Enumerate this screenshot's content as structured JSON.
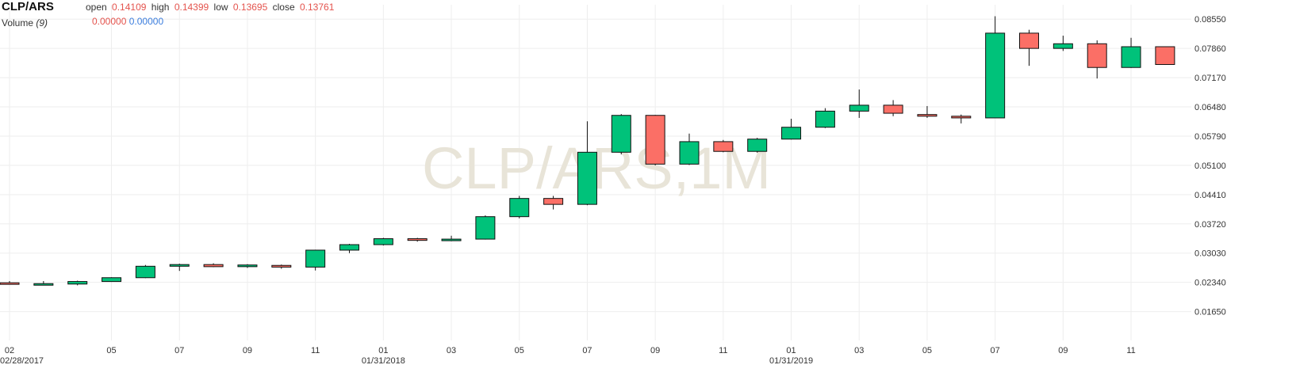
{
  "header": {
    "symbol": "CLP/ARS",
    "open_label": "open",
    "open_value": "0.14109",
    "high_label": "high",
    "high_value": "0.14399",
    "low_label": "low",
    "low_value": "0.13695",
    "close_label": "close",
    "close_value": "0.13761",
    "volume_label": "Volume",
    "volume_period": "(9)",
    "volume_value_1": "0.00000",
    "volume_value_2": "0.00000"
  },
  "watermark": "CLP/ARS,1M",
  "colors": {
    "up": "#00c27a",
    "down": "#fb6f66",
    "wick": "#111111",
    "grid": "#eeeeee",
    "header_value": "#e4534d",
    "volume_blue": "#3b7ddd",
    "watermark": "#e8e4d8"
  },
  "chart_data": {
    "type": "candlestick",
    "title": "CLP/ARS",
    "ylim": [
      0.0097,
      0.0889
    ],
    "y_ticks": [
      "0.08550",
      "0.07860",
      "0.07170",
      "0.06480",
      "0.05790",
      "0.05100",
      "0.04410",
      "0.03720",
      "0.03030",
      "0.02340",
      "0.01650"
    ],
    "x_ticks": [
      {
        "month_index": 0,
        "label": "02",
        "date_label": "02/28/2017"
      },
      {
        "month_index": 3,
        "label": "05",
        "date_label": ""
      },
      {
        "month_index": 5,
        "label": "07",
        "date_label": ""
      },
      {
        "month_index": 7,
        "label": "09",
        "date_label": ""
      },
      {
        "month_index": 9,
        "label": "11",
        "date_label": ""
      },
      {
        "month_index": 11,
        "label": "01",
        "date_label": "01/31/2018"
      },
      {
        "month_index": 13,
        "label": "03",
        "date_label": ""
      },
      {
        "month_index": 15,
        "label": "05",
        "date_label": ""
      },
      {
        "month_index": 17,
        "label": "07",
        "date_label": ""
      },
      {
        "month_index": 19,
        "label": "09",
        "date_label": ""
      },
      {
        "month_index": 21,
        "label": "11",
        "date_label": ""
      },
      {
        "month_index": 23,
        "label": "01",
        "date_label": "01/31/2019"
      },
      {
        "month_index": 25,
        "label": "03",
        "date_label": ""
      },
      {
        "month_index": 27,
        "label": "05",
        "date_label": ""
      },
      {
        "month_index": 29,
        "label": "07",
        "date_label": ""
      },
      {
        "month_index": 31,
        "label": "09",
        "date_label": ""
      },
      {
        "month_index": 33,
        "label": "11",
        "date_label": ""
      }
    ],
    "candles": [
      {
        "date": "2017-02",
        "open": 0.0233,
        "high": 0.0237,
        "low": 0.0231,
        "close": 0.023
      },
      {
        "date": "2017-03",
        "open": 0.023,
        "high": 0.0237,
        "low": 0.0227,
        "close": 0.0231
      },
      {
        "date": "2017-04",
        "open": 0.023,
        "high": 0.0238,
        "low": 0.0227,
        "close": 0.0236
      },
      {
        "date": "2017-05",
        "open": 0.0236,
        "high": 0.0246,
        "low": 0.0235,
        "close": 0.0245
      },
      {
        "date": "2017-06",
        "open": 0.0245,
        "high": 0.0275,
        "low": 0.0244,
        "close": 0.0272
      },
      {
        "date": "2017-07",
        "open": 0.0272,
        "high": 0.0278,
        "low": 0.0261,
        "close": 0.0276
      },
      {
        "date": "2017-08",
        "open": 0.0276,
        "high": 0.0279,
        "low": 0.027,
        "close": 0.0271
      },
      {
        "date": "2017-09",
        "open": 0.0271,
        "high": 0.0277,
        "low": 0.0268,
        "close": 0.0275
      },
      {
        "date": "2017-10",
        "open": 0.0274,
        "high": 0.0276,
        "low": 0.0266,
        "close": 0.027
      },
      {
        "date": "2017-11",
        "open": 0.027,
        "high": 0.0311,
        "low": 0.0262,
        "close": 0.031
      },
      {
        "date": "2017-12",
        "open": 0.031,
        "high": 0.0325,
        "low": 0.0303,
        "close": 0.0323
      },
      {
        "date": "2018-01",
        "open": 0.0323,
        "high": 0.0339,
        "low": 0.0321,
        "close": 0.0337
      },
      {
        "date": "2018-02",
        "open": 0.0337,
        "high": 0.0339,
        "low": 0.033,
        "close": 0.0333
      },
      {
        "date": "2018-03",
        "open": 0.0334,
        "high": 0.0344,
        "low": 0.0331,
        "close": 0.0336
      },
      {
        "date": "2018-04",
        "open": 0.0336,
        "high": 0.0392,
        "low": 0.0335,
        "close": 0.0389
      },
      {
        "date": "2018-05",
        "open": 0.0389,
        "high": 0.0438,
        "low": 0.0385,
        "close": 0.0432
      },
      {
        "date": "2018-06",
        "open": 0.0432,
        "high": 0.0438,
        "low": 0.0406,
        "close": 0.0418
      },
      {
        "date": "2018-07",
        "open": 0.0418,
        "high": 0.0614,
        "low": 0.0416,
        "close": 0.0541
      },
      {
        "date": "2018-08",
        "open": 0.0541,
        "high": 0.0631,
        "low": 0.0536,
        "close": 0.0628
      },
      {
        "date": "2018-09",
        "open": 0.0628,
        "high": 0.0629,
        "low": 0.051,
        "close": 0.0513
      },
      {
        "date": "2018-10",
        "open": 0.0513,
        "high": 0.0585,
        "low": 0.0511,
        "close": 0.0566
      },
      {
        "date": "2018-11",
        "open": 0.0566,
        "high": 0.057,
        "low": 0.0541,
        "close": 0.0543
      },
      {
        "date": "2018-12",
        "open": 0.0543,
        "high": 0.0575,
        "low": 0.054,
        "close": 0.0572
      },
      {
        "date": "2019-01",
        "open": 0.0572,
        "high": 0.062,
        "low": 0.0571,
        "close": 0.06
      },
      {
        "date": "2019-02",
        "open": 0.06,
        "high": 0.0645,
        "low": 0.0598,
        "close": 0.0638
      },
      {
        "date": "2019-03",
        "open": 0.0638,
        "high": 0.0689,
        "low": 0.0622,
        "close": 0.0652
      },
      {
        "date": "2019-04",
        "open": 0.0652,
        "high": 0.0664,
        "low": 0.0626,
        "close": 0.0633
      },
      {
        "date": "2019-05",
        "open": 0.063,
        "high": 0.065,
        "low": 0.0622,
        "close": 0.0626
      },
      {
        "date": "2019-06",
        "open": 0.0626,
        "high": 0.063,
        "low": 0.0609,
        "close": 0.0622
      },
      {
        "date": "2019-07",
        "open": 0.0622,
        "high": 0.0862,
        "low": 0.0622,
        "close": 0.0822
      },
      {
        "date": "2019-08",
        "open": 0.0822,
        "high": 0.083,
        "low": 0.0745,
        "close": 0.0786
      },
      {
        "date": "2019-09",
        "open": 0.0786,
        "high": 0.0816,
        "low": 0.078,
        "close": 0.0797
      },
      {
        "date": "2019-10",
        "open": 0.0797,
        "high": 0.0805,
        "low": 0.0715,
        "close": 0.0741
      },
      {
        "date": "2019-11",
        "open": 0.0741,
        "high": 0.0811,
        "low": 0.074,
        "close": 0.079
      },
      {
        "date": "2019-12",
        "open": 0.079,
        "high": 0.079,
        "low": 0.0747,
        "close": 0.0748
      }
    ]
  }
}
